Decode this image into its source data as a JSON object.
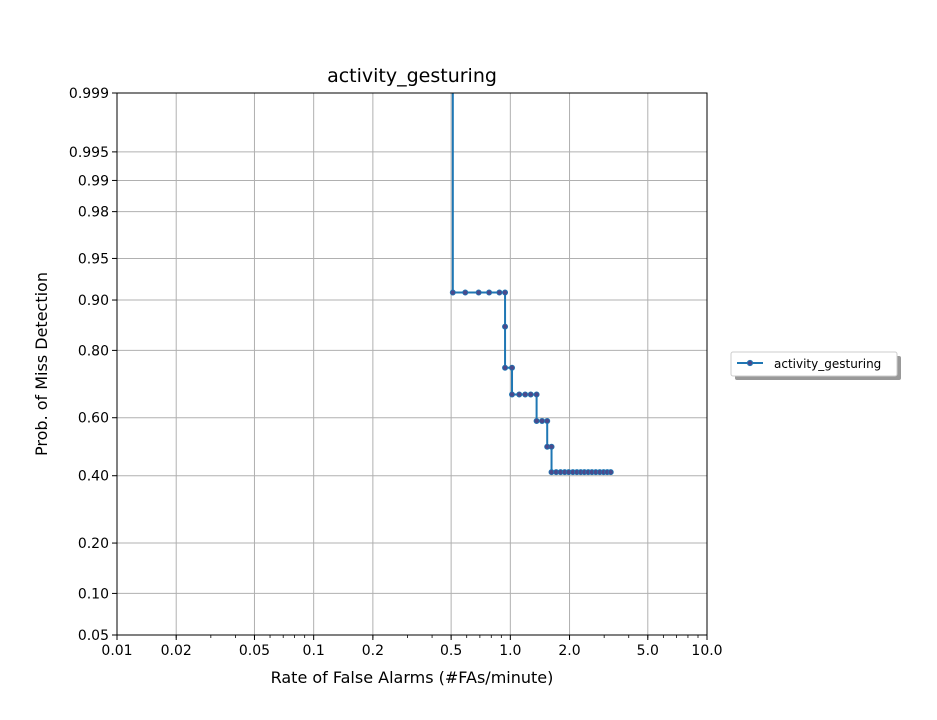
{
  "chart_data": {
    "type": "line",
    "title": "activity_gesturing",
    "xlabel": "Rate of False Alarms (#FAs/minute)",
    "ylabel": "Prob. of Miss Detection",
    "x_scale": "log",
    "y_scale": "normal-deviate (probit)",
    "xlim": [
      0.01,
      10.0
    ],
    "ylim": [
      0.05,
      0.999
    ],
    "x_ticks": [
      {
        "value": 0.01,
        "label": "0.01"
      },
      {
        "value": 0.02,
        "label": "0.02"
      },
      {
        "value": 0.05,
        "label": "0.05"
      },
      {
        "value": 0.1,
        "label": "0.1"
      },
      {
        "value": 0.2,
        "label": "0.2"
      },
      {
        "value": 0.5,
        "label": "0.5"
      },
      {
        "value": 1.0,
        "label": "1.0"
      },
      {
        "value": 2.0,
        "label": "2.0"
      },
      {
        "value": 5.0,
        "label": "5.0"
      },
      {
        "value": 10.0,
        "label": "10.0"
      }
    ],
    "y_ticks": [
      {
        "value": 0.05,
        "label": "0.05"
      },
      {
        "value": 0.1,
        "label": "0.10"
      },
      {
        "value": 0.2,
        "label": "0.20"
      },
      {
        "value": 0.4,
        "label": "0.40"
      },
      {
        "value": 0.6,
        "label": "0.60"
      },
      {
        "value": 0.8,
        "label": "0.80"
      },
      {
        "value": 0.9,
        "label": "0.90"
      },
      {
        "value": 0.95,
        "label": "0.95"
      },
      {
        "value": 0.98,
        "label": "0.98"
      },
      {
        "value": 0.99,
        "label": "0.99"
      },
      {
        "value": 0.995,
        "label": "0.995"
      },
      {
        "value": 0.999,
        "label": "0.999"
      }
    ],
    "grid": true,
    "legend_position": "outside right",
    "series": [
      {
        "name": "activity_gesturing",
        "color": "#1f77b4",
        "marker_color": "#4a4a8c",
        "points": [
          [
            0.51,
            0.999
          ],
          [
            0.51,
            0.911
          ],
          [
            0.59,
            0.911
          ],
          [
            0.69,
            0.911
          ],
          [
            0.78,
            0.911
          ],
          [
            0.88,
            0.911
          ],
          [
            0.94,
            0.911
          ],
          [
            0.94,
            0.853
          ],
          [
            0.94,
            0.755
          ],
          [
            1.02,
            0.755
          ],
          [
            1.02,
            0.676
          ],
          [
            1.11,
            0.676
          ],
          [
            1.19,
            0.676
          ],
          [
            1.27,
            0.676
          ],
          [
            1.36,
            0.676
          ],
          [
            1.36,
            0.589
          ],
          [
            1.45,
            0.589
          ],
          [
            1.54,
            0.589
          ],
          [
            1.54,
            0.5
          ],
          [
            1.62,
            0.5
          ],
          [
            1.62,
            0.412
          ],
          [
            1.71,
            0.412
          ],
          [
            1.8,
            0.412
          ],
          [
            1.89,
            0.412
          ],
          [
            1.98,
            0.412
          ],
          [
            2.08,
            0.412
          ],
          [
            2.18,
            0.412
          ],
          [
            2.28,
            0.412
          ],
          [
            2.38,
            0.412
          ],
          [
            2.49,
            0.412
          ],
          [
            2.6,
            0.412
          ],
          [
            2.72,
            0.412
          ],
          [
            2.85,
            0.412
          ],
          [
            2.98,
            0.412
          ],
          [
            3.11,
            0.412
          ],
          [
            3.24,
            0.412
          ]
        ],
        "marker_from_index": 1
      }
    ]
  }
}
